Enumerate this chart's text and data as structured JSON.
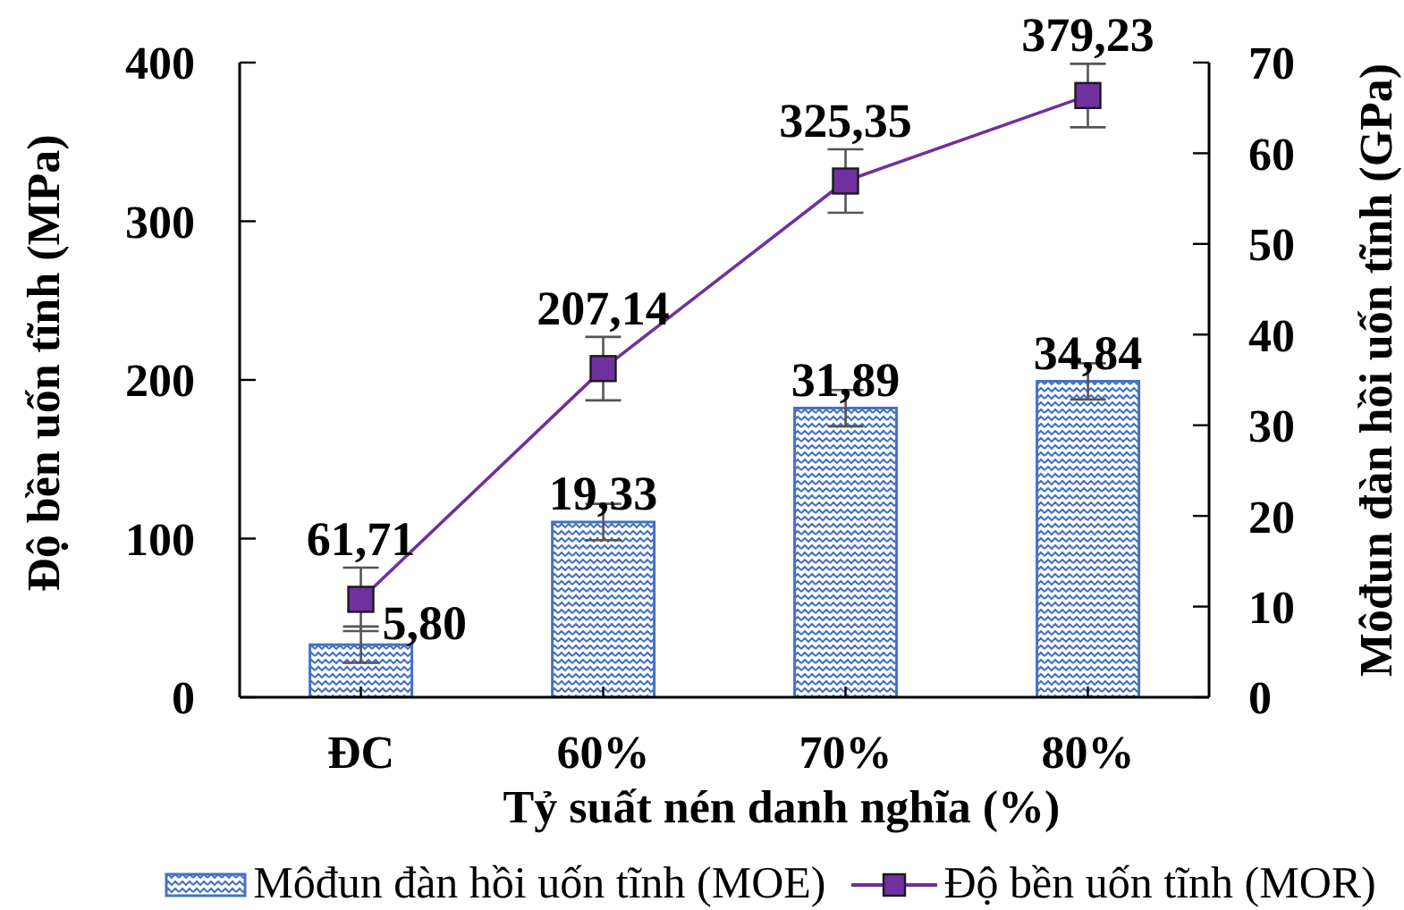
{
  "chart_data": {
    "type": "bar",
    "xlabel": "Tỷ suất nén danh nghĩa (%)",
    "ylabel": "Độ bền uốn tĩnh (MPa)",
    "y2label": "Môđun đàn hồi uốn tĩnh (GPa)",
    "categories": [
      "ĐC",
      "60%",
      "70%",
      "80%"
    ],
    "series": [
      {
        "name": "Môđun đàn hồi uốn tĩnh (MOE)",
        "axis": "y2",
        "color": "#4472c4",
        "values": [
          5.8,
          19.33,
          31.89,
          34.84
        ],
        "errors": [
          2,
          2,
          2,
          2
        ],
        "value_labels": [
          "5,80",
          "19,33",
          "31,89",
          "34,84"
        ]
      },
      {
        "name": "Độ bền uốn tĩnh (MOR)",
        "type": "line",
        "axis": "y",
        "color": "#7030a0",
        "values": [
          61.71,
          207.14,
          325.35,
          379.23
        ],
        "errors": [
          20,
          20,
          20,
          20
        ],
        "value_labels": [
          "61,71",
          "207,14",
          "325,35",
          "379,23"
        ]
      }
    ],
    "ylim": [
      0,
      400
    ],
    "yticks": [
      0,
      100,
      200,
      300,
      400
    ],
    "y2lim": [
      0,
      70
    ],
    "y2ticks": [
      0,
      10,
      20,
      30,
      40,
      50,
      60,
      70
    ],
    "marker": "square",
    "legend": "bottom"
  }
}
